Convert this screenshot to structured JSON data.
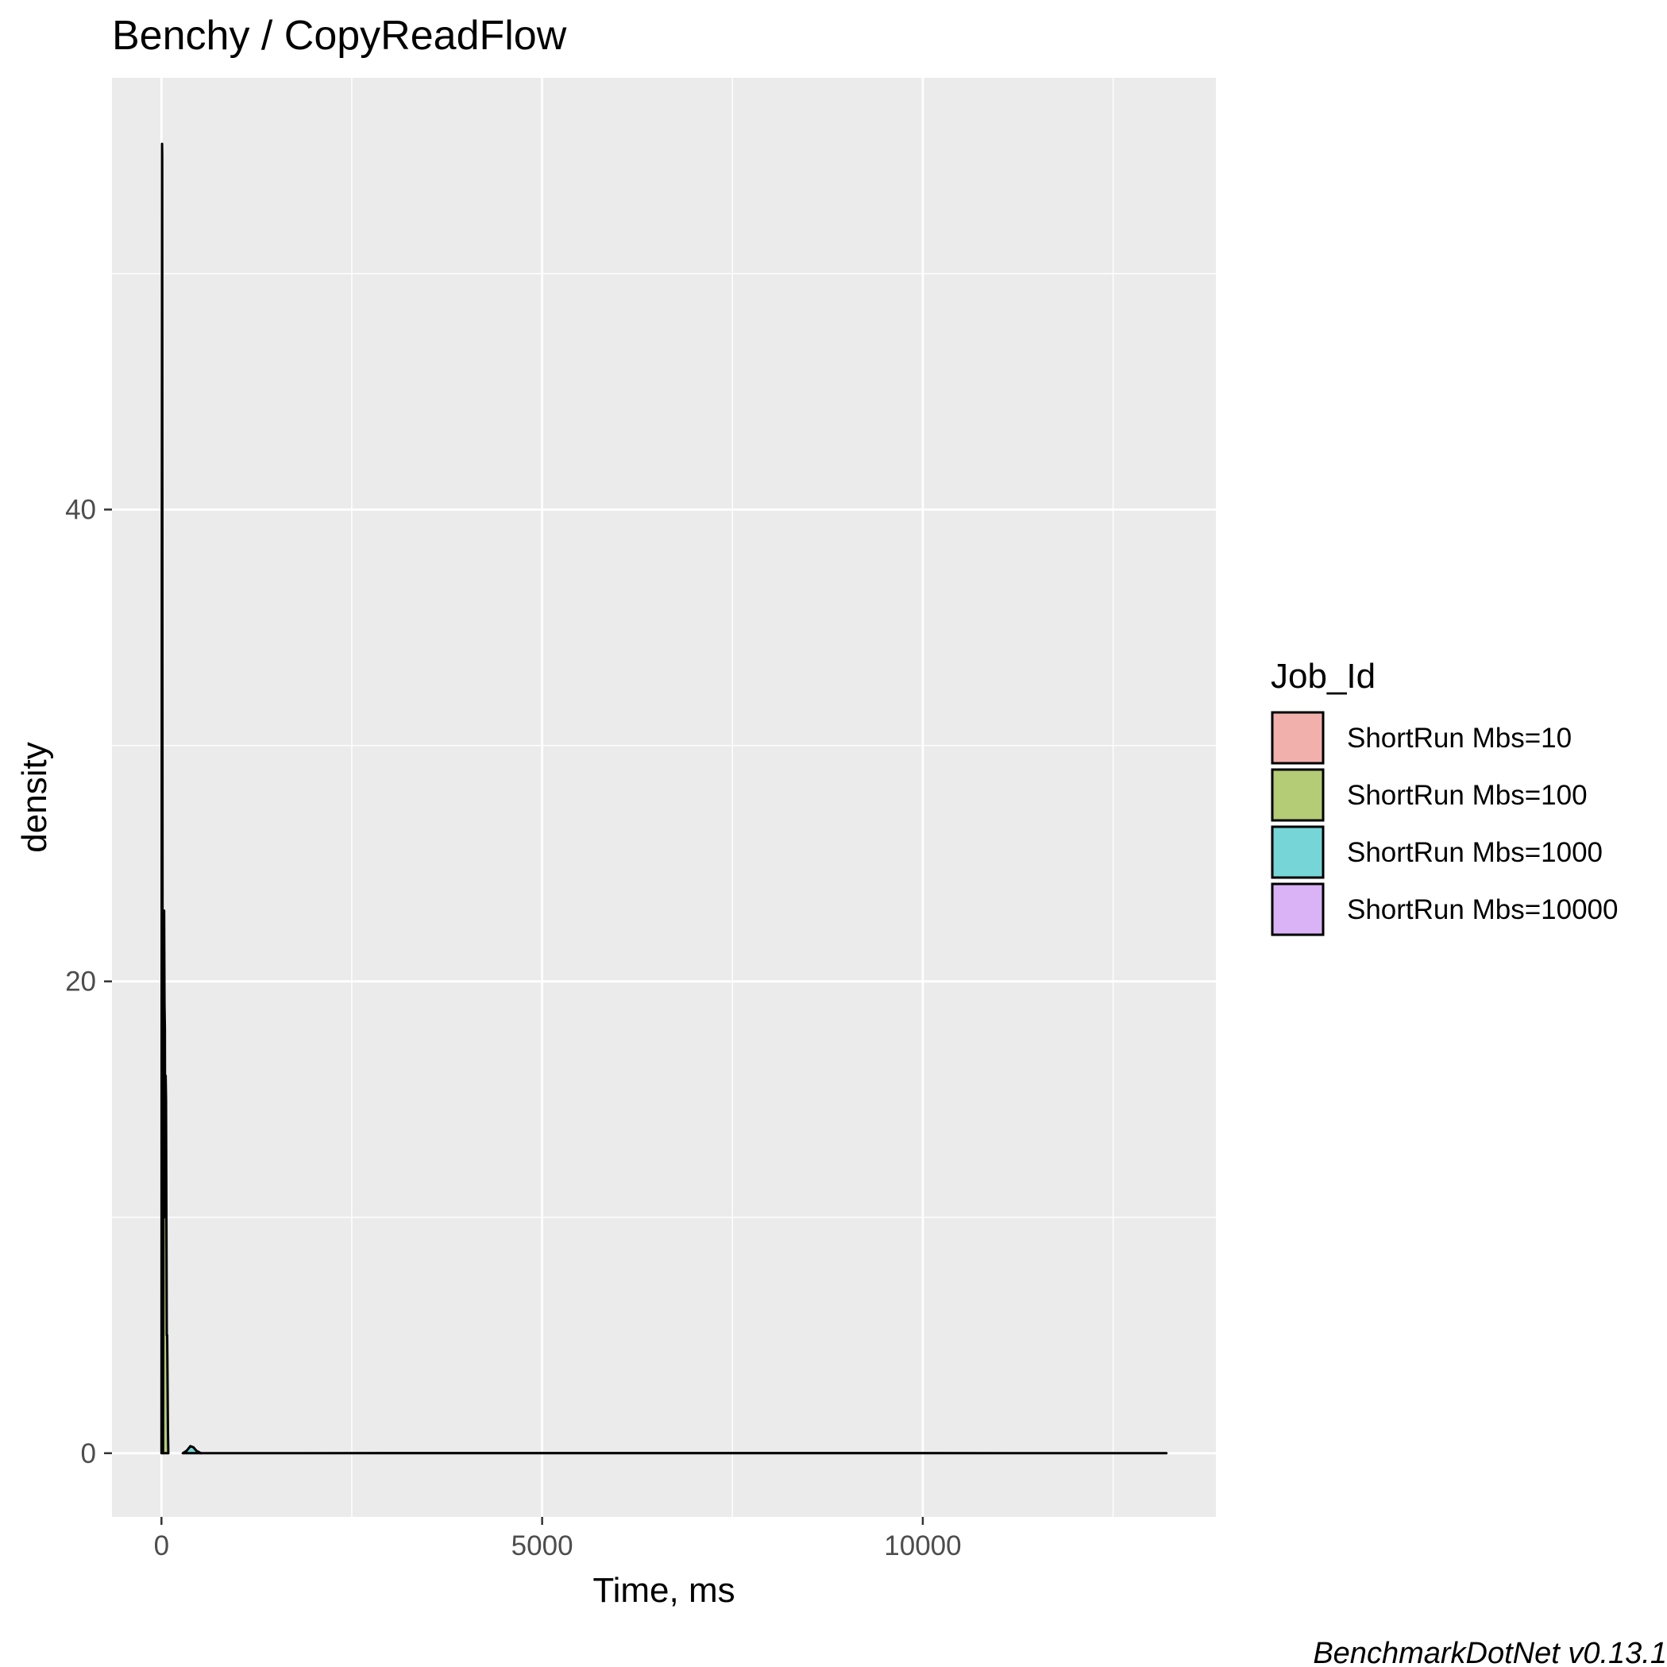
{
  "chart_data": {
    "type": "area",
    "title": "Benchy / CopyReadFlow",
    "xlabel": "Time, ms",
    "ylabel": "density",
    "xlim": [
      -650,
      13850
    ],
    "ylim": [
      -2.7,
      58.3
    ],
    "x_ticks": [
      0,
      5000,
      10000
    ],
    "y_ticks": [
      0,
      20,
      40
    ],
    "grid": true,
    "legend_title": "Job_Id",
    "legend_position": "right",
    "caption": "BenchmarkDotNet v0.13.1",
    "series": [
      {
        "name": "ShortRun Mbs=10",
        "color": "#F8766D",
        "x": [
          0,
          4,
          8,
          10,
          12,
          16,
          20
        ],
        "y": [
          0,
          37,
          55.5,
          55.0,
          37,
          8,
          0
        ]
      },
      {
        "name": "ShortRun Mbs=100",
        "color": "#7CAE00",
        "x": [
          20,
          25,
          30,
          35,
          40,
          45,
          50,
          55,
          60,
          65,
          70,
          75,
          80,
          85,
          90
        ],
        "y": [
          0,
          8,
          19,
          23,
          19,
          18,
          10,
          16,
          15,
          10,
          5,
          5,
          3,
          1,
          0
        ]
      },
      {
        "name": "ShortRun Mbs=1000",
        "color": "#00BFC4",
        "x": [
          280,
          330,
          380,
          420,
          460,
          520
        ],
        "y": [
          0,
          0.1,
          0.3,
          0.25,
          0.1,
          0
        ]
      },
      {
        "name": "ShortRun Mbs=10000",
        "color": "#C77CFF",
        "x": [
          520,
          3000,
          6000,
          9000,
          12000,
          13200
        ],
        "y": [
          0,
          0.004,
          0.006,
          0.005,
          0.003,
          0
        ]
      }
    ]
  }
}
